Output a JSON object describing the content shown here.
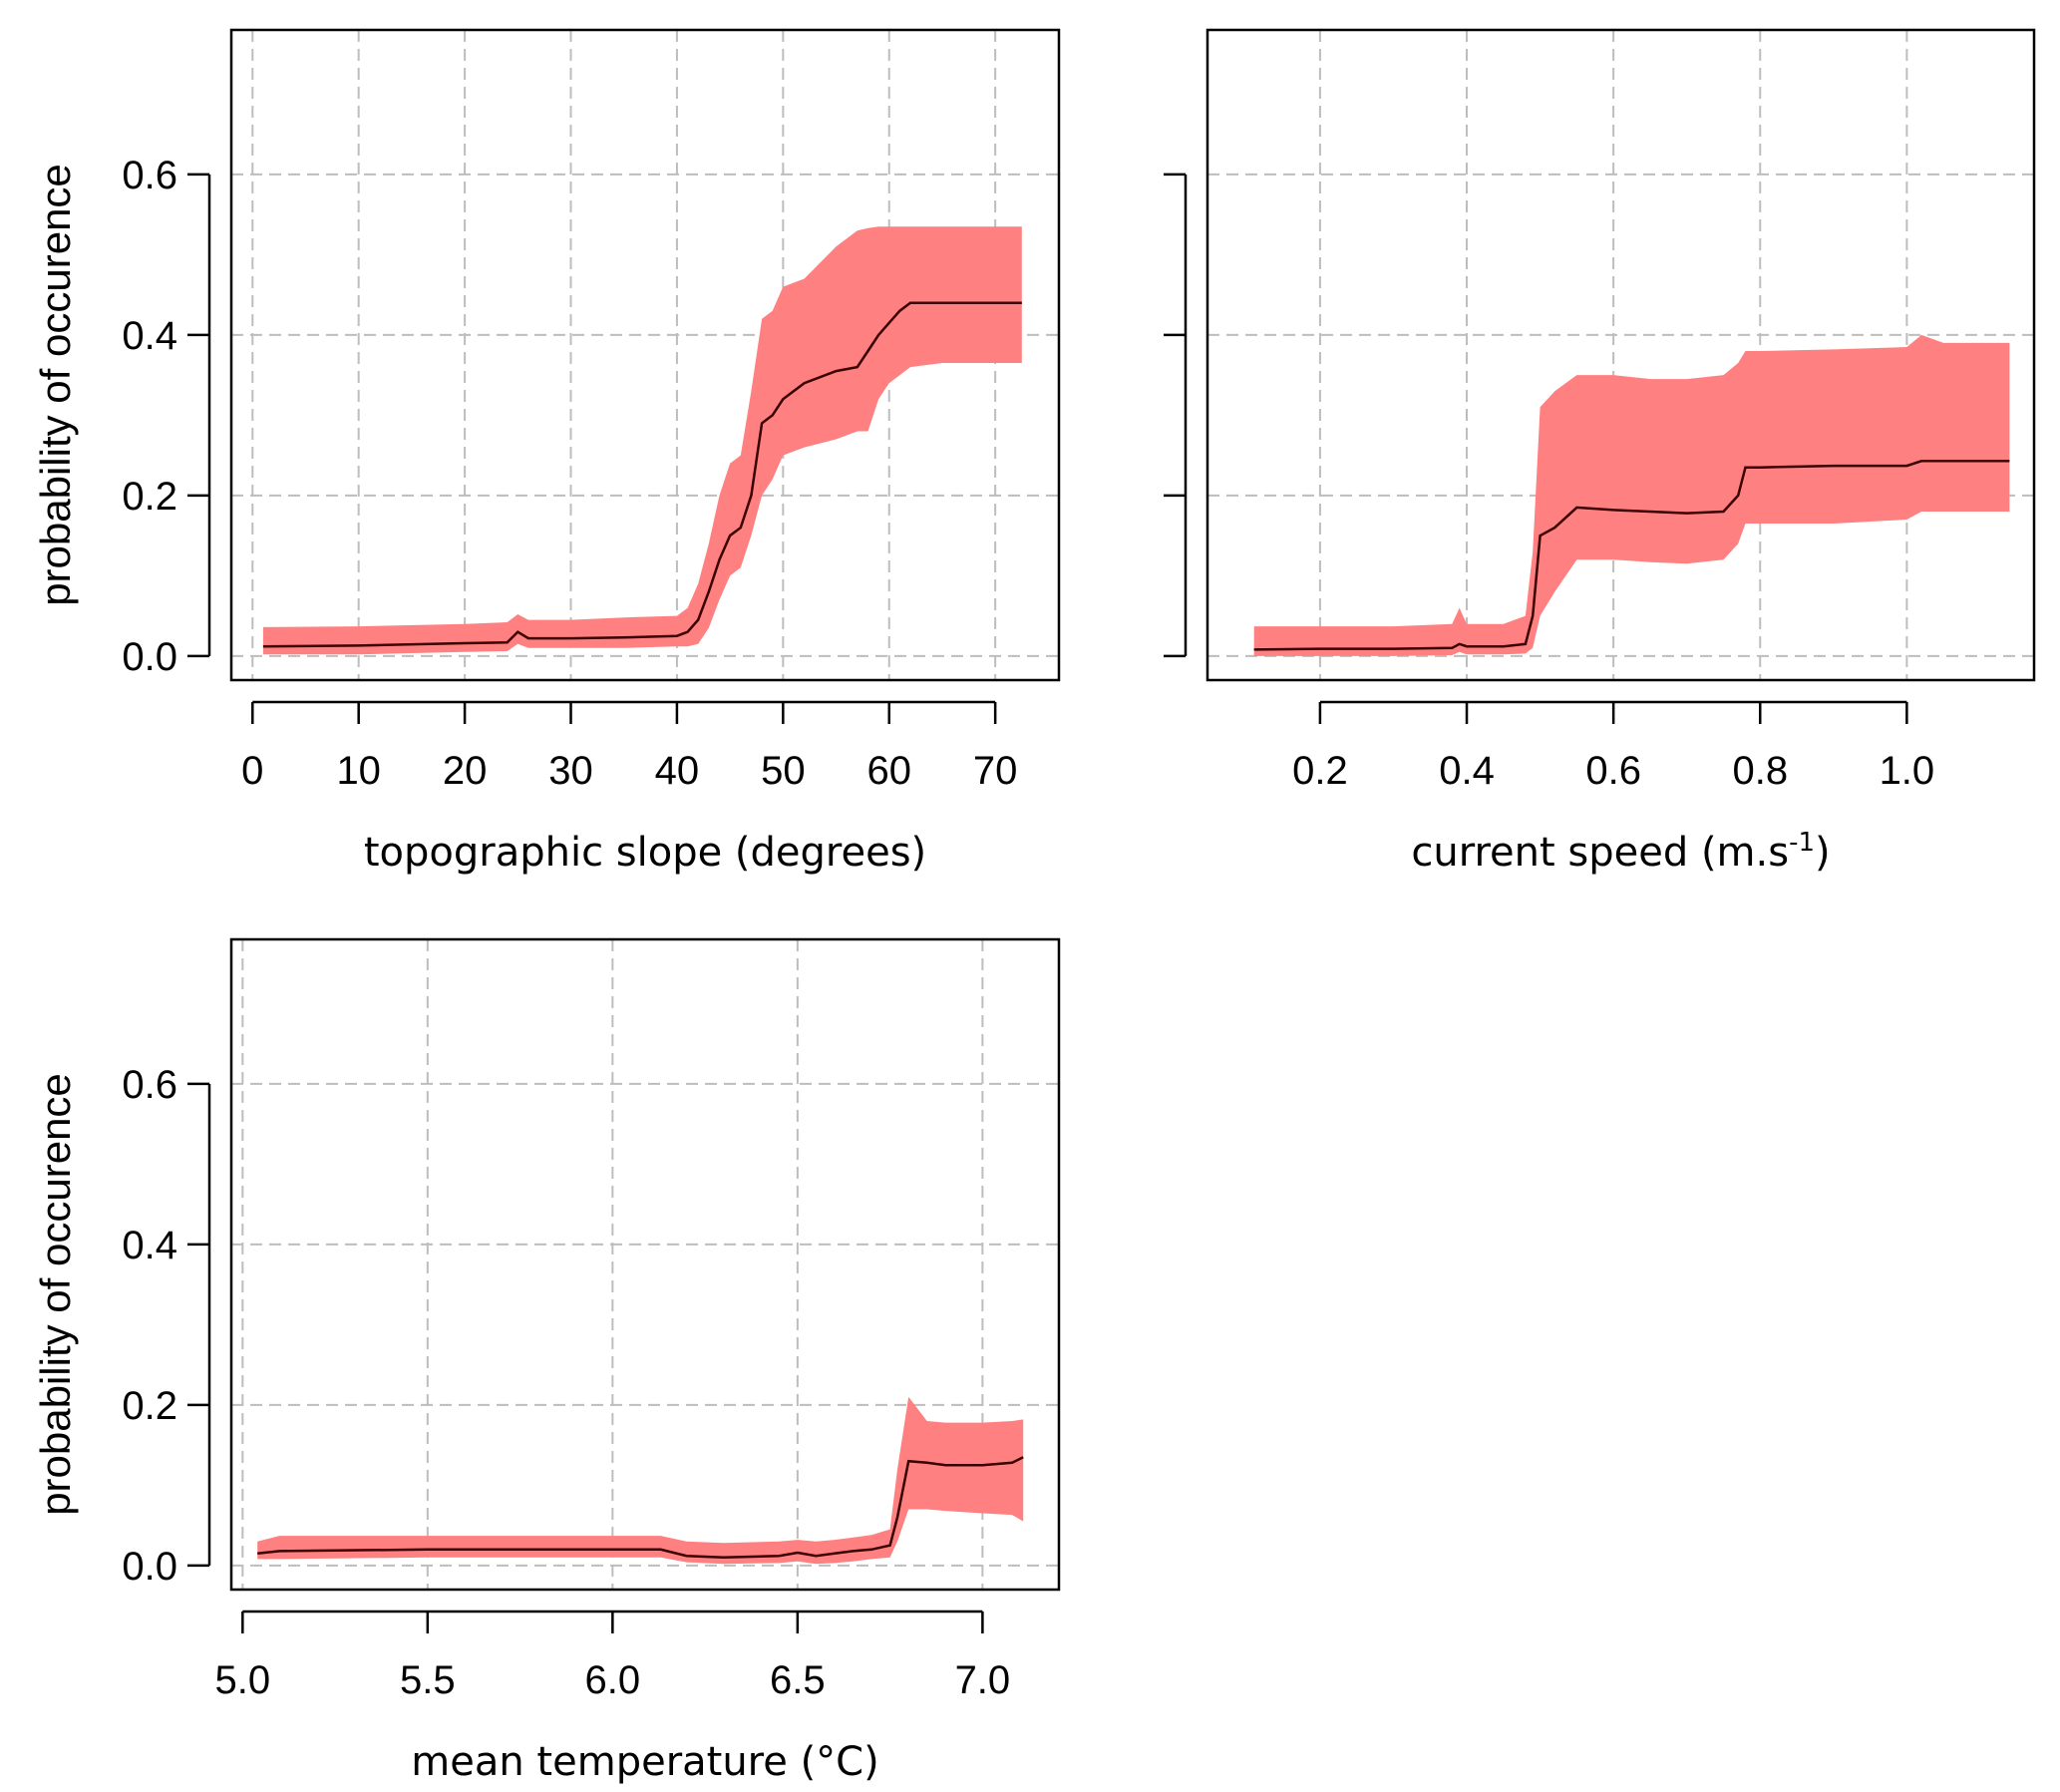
{
  "colors": {
    "band": "#ff8080",
    "line": "#3a0000"
  },
  "chart_data": [
    {
      "type": "line",
      "xlabel": "topographic slope (degrees)",
      "ylabel": "probability of occurence",
      "xlim": [
        -2,
        76
      ],
      "ylim": [
        -0.03,
        0.78
      ],
      "xticks": [
        0,
        10,
        20,
        30,
        40,
        50,
        60,
        70
      ],
      "xtick_labels": [
        "0",
        "10",
        "20",
        "30",
        "40",
        "50",
        "60",
        "70"
      ],
      "yticks": [
        0.0,
        0.2,
        0.4,
        0.6
      ],
      "ytick_labels": [
        "0.0",
        "0.2",
        "0.4",
        "0.6"
      ],
      "show_ytick_labels": true,
      "grid": true,
      "series": [
        {
          "x": [
            1,
            10,
            20,
            24,
            25,
            26,
            30,
            35,
            40,
            41,
            42,
            43,
            44,
            45,
            46,
            47,
            48,
            49,
            50,
            52,
            55,
            57,
            58,
            59,
            60,
            61,
            62,
            65,
            68,
            70,
            72.5
          ],
          "y": [
            0.012,
            0.013,
            0.016,
            0.017,
            0.03,
            0.022,
            0.022,
            0.023,
            0.025,
            0.03,
            0.045,
            0.08,
            0.12,
            0.15,
            0.16,
            0.2,
            0.29,
            0.3,
            0.32,
            0.34,
            0.355,
            0.36,
            0.38,
            0.4,
            0.415,
            0.43,
            0.44,
            0.44,
            0.44,
            0.44,
            0.44
          ],
          "lower": [
            0.002,
            0.002,
            0.005,
            0.006,
            0.015,
            0.01,
            0.01,
            0.01,
            0.012,
            0.012,
            0.015,
            0.035,
            0.07,
            0.1,
            0.11,
            0.15,
            0.2,
            0.22,
            0.25,
            0.26,
            0.27,
            0.28,
            0.28,
            0.32,
            0.34,
            0.35,
            0.36,
            0.365,
            0.365,
            0.365,
            0.365
          ],
          "upper": [
            0.036,
            0.037,
            0.04,
            0.042,
            0.052,
            0.045,
            0.045,
            0.048,
            0.05,
            0.06,
            0.09,
            0.14,
            0.2,
            0.24,
            0.25,
            0.33,
            0.42,
            0.43,
            0.46,
            0.47,
            0.51,
            0.53,
            0.533,
            0.535,
            0.535,
            0.535,
            0.535,
            0.535,
            0.535,
            0.535,
            0.535
          ]
        }
      ]
    },
    {
      "type": "line",
      "xlabel": "current speed (m.s",
      "xlabel_sup": "-1",
      "xlabel_end": ")",
      "ylabel": "",
      "xlim": [
        0.0465,
        1.1735
      ],
      "ylim": [
        -0.03,
        0.78
      ],
      "xticks": [
        0.2,
        0.4,
        0.6,
        0.8,
        1.0
      ],
      "xtick_labels": [
        "0.2",
        "0.4",
        "0.6",
        "0.8",
        "1.0"
      ],
      "yticks": [
        0.0,
        0.2,
        0.4,
        0.6
      ],
      "ytick_labels": [
        "0.0",
        "0.2",
        "0.4",
        "0.6"
      ],
      "show_ytick_labels": false,
      "grid": true,
      "series": [
        {
          "x": [
            0.11,
            0.2,
            0.3,
            0.38,
            0.39,
            0.4,
            0.45,
            0.48,
            0.49,
            0.5,
            0.52,
            0.55,
            0.6,
            0.65,
            0.7,
            0.75,
            0.77,
            0.78,
            0.8,
            0.9,
            1.0,
            1.02,
            1.05,
            1.14
          ],
          "y": [
            0.008,
            0.009,
            0.009,
            0.01,
            0.015,
            0.012,
            0.012,
            0.015,
            0.05,
            0.15,
            0.16,
            0.185,
            0.182,
            0.18,
            0.178,
            0.18,
            0.2,
            0.235,
            0.235,
            0.237,
            0.237,
            0.243,
            0.243,
            0.243
          ],
          "lower": [
            0.0,
            0.0,
            0.0,
            0.001,
            0.005,
            0.002,
            0.002,
            0.003,
            0.01,
            0.05,
            0.08,
            0.12,
            0.12,
            0.117,
            0.115,
            0.12,
            0.14,
            0.165,
            0.165,
            0.165,
            0.17,
            0.18,
            0.18,
            0.18
          ],
          "upper": [
            0.037,
            0.037,
            0.037,
            0.04,
            0.06,
            0.04,
            0.04,
            0.05,
            0.13,
            0.31,
            0.33,
            0.35,
            0.35,
            0.345,
            0.345,
            0.35,
            0.365,
            0.38,
            0.38,
            0.382,
            0.385,
            0.4,
            0.39,
            0.39
          ]
        }
      ]
    },
    {
      "type": "line",
      "xlabel": "mean temperature (°C)",
      "ylabel": "probability of occurence",
      "xlim": [
        4.9695,
        7.2065
      ],
      "ylim": [
        -0.03,
        0.78
      ],
      "xticks": [
        5.0,
        5.5,
        6.0,
        6.5,
        7.0
      ],
      "xtick_labels": [
        "5.0",
        "5.5",
        "6.0",
        "6.5",
        "7.0"
      ],
      "yticks": [
        0.0,
        0.2,
        0.4,
        0.6
      ],
      "ytick_labels": [
        "0.0",
        "0.2",
        "0.4",
        "0.6"
      ],
      "show_ytick_labels": true,
      "grid": true,
      "series": [
        {
          "x": [
            5.04,
            5.1,
            5.5,
            6.0,
            6.13,
            6.2,
            6.3,
            6.45,
            6.5,
            6.55,
            6.6,
            6.65,
            6.7,
            6.75,
            6.77,
            6.8,
            6.85,
            6.9,
            7.0,
            7.08,
            7.11
          ],
          "y": [
            0.015,
            0.018,
            0.02,
            0.02,
            0.02,
            0.012,
            0.01,
            0.012,
            0.016,
            0.012,
            0.015,
            0.018,
            0.02,
            0.025,
            0.06,
            0.13,
            0.128,
            0.125,
            0.125,
            0.128,
            0.135
          ],
          "lower": [
            0.008,
            0.008,
            0.01,
            0.01,
            0.01,
            0.004,
            0.002,
            0.003,
            0.005,
            0.002,
            0.003,
            0.005,
            0.008,
            0.01,
            0.03,
            0.07,
            0.07,
            0.068,
            0.065,
            0.063,
            0.055
          ],
          "upper": [
            0.03,
            0.037,
            0.037,
            0.037,
            0.037,
            0.03,
            0.028,
            0.03,
            0.032,
            0.03,
            0.032,
            0.035,
            0.038,
            0.045,
            0.12,
            0.21,
            0.18,
            0.178,
            0.178,
            0.18,
            0.182
          ]
        }
      ]
    }
  ]
}
